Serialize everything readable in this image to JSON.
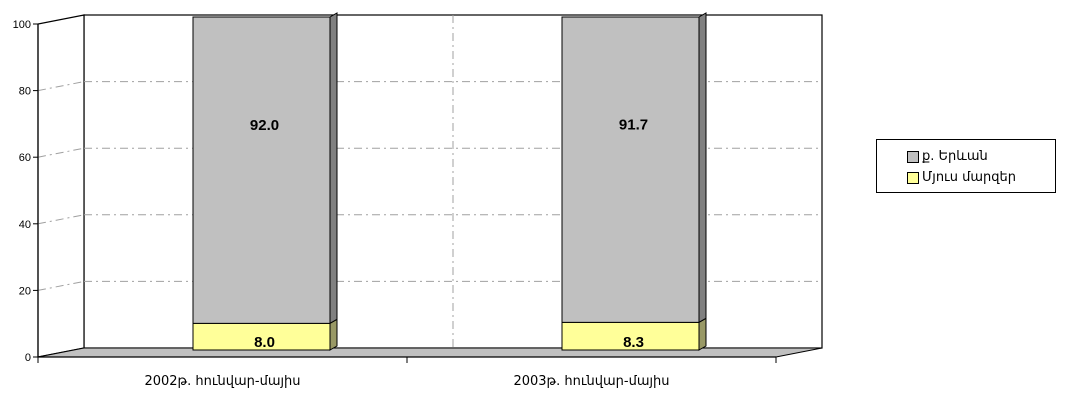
{
  "chart_data": {
    "type": "bar",
    "stacked": true,
    "categories": [
      "2002թ. հունվար-մայիս",
      "2003թ. հունվար-մայիս"
    ],
    "series": [
      {
        "name": "Մյուս մարզեր",
        "values": [
          8.0,
          8.3
        ],
        "color": "#ffff99"
      },
      {
        "name": "ք. Երևան",
        "values": [
          92.0,
          91.7
        ],
        "color": "#c0c0c0"
      }
    ],
    "data_labels": [
      [
        "8.0",
        "8.3"
      ],
      [
        "92.0",
        "91.7"
      ]
    ],
    "ylim": [
      0,
      100
    ],
    "yticks": [
      0,
      20,
      40,
      60,
      80,
      100
    ],
    "grid": true,
    "legend_position": "right",
    "three_d": true
  },
  "legend": {
    "items": [
      {
        "label": "ք. Երևան",
        "color": "#c0c0c0"
      },
      {
        "label": "Մյուս մարզեր",
        "color": "#ffff99"
      }
    ]
  }
}
